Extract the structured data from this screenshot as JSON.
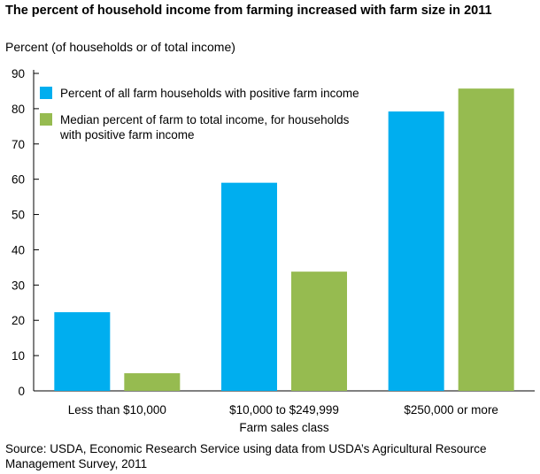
{
  "chart_data": {
    "type": "bar",
    "title": "The percent of household income from farming increased with farm size in 2011",
    "ylabel": "Percent (of households or of total income)",
    "xlabel": "Farm sales class",
    "categories": [
      "Less than $10,000",
      "$10,000 to $249,999",
      "$250,000 or more"
    ],
    "series": [
      {
        "name": "Percent of all farm households with positive farm income",
        "values": [
          22.3,
          59,
          79.2
        ],
        "color": "#00aeef"
      },
      {
        "name": "Median percent of farm to total income, for households with positive farm income",
        "values": [
          5,
          33.8,
          85.7
        ],
        "color": "#96bb50"
      }
    ],
    "ylim": [
      0,
      90
    ],
    "yticks": [
      0,
      10,
      20,
      30,
      40,
      50,
      60,
      70,
      80,
      90
    ],
    "grid": false,
    "legend_position": "top-left"
  },
  "legend_lines": [
    [
      "Percent of all farm households with positive farm income"
    ],
    [
      "Median percent of farm to total income, for households",
      "with positive farm income"
    ]
  ],
  "source": "Source: USDA, Economic Research Service using data from USDA’s Agricultural Resource Management Survey, 2011"
}
